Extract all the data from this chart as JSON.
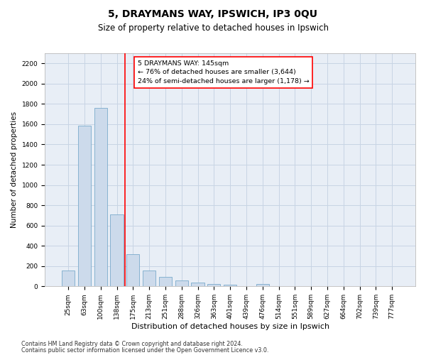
{
  "title1": "5, DRAYMANS WAY, IPSWICH, IP3 0QU",
  "title2": "Size of property relative to detached houses in Ipswich",
  "xlabel": "Distribution of detached houses by size in Ipswich",
  "ylabel": "Number of detached properties",
  "categories": [
    "25sqm",
    "63sqm",
    "100sqm",
    "138sqm",
    "175sqm",
    "213sqm",
    "251sqm",
    "288sqm",
    "326sqm",
    "363sqm",
    "401sqm",
    "439sqm",
    "476sqm",
    "514sqm",
    "551sqm",
    "589sqm",
    "627sqm",
    "664sqm",
    "702sqm",
    "739sqm",
    "777sqm"
  ],
  "values": [
    160,
    1585,
    1760,
    710,
    315,
    160,
    90,
    55,
    35,
    22,
    15,
    5,
    20,
    5,
    2,
    0,
    0,
    0,
    0,
    0,
    0
  ],
  "bar_color": "#ccdaeb",
  "bar_edge_color": "#7aaacb",
  "grid_color": "#c8d4e4",
  "bg_color": "#e8eef6",
  "vline_color": "red",
  "vline_x": 3.5,
  "annotation_text": "5 DRAYMANS WAY: 145sqm\n← 76% of detached houses are smaller (3,644)\n24% of semi-detached houses are larger (1,178) →",
  "annotation_box_color": "white",
  "annotation_border_color": "red",
  "footer1": "Contains HM Land Registry data © Crown copyright and database right 2024.",
  "footer2": "Contains public sector information licensed under the Open Government Licence v3.0.",
  "ylim": [
    0,
    2300
  ],
  "yticks": [
    0,
    200,
    400,
    600,
    800,
    1000,
    1200,
    1400,
    1600,
    1800,
    2000,
    2200
  ],
  "title1_fontsize": 10,
  "title2_fontsize": 8.5,
  "xlabel_fontsize": 8,
  "ylabel_fontsize": 7.5,
  "tick_fontsize": 6.5,
  "annotation_fontsize": 6.8,
  "footer_fontsize": 5.8
}
